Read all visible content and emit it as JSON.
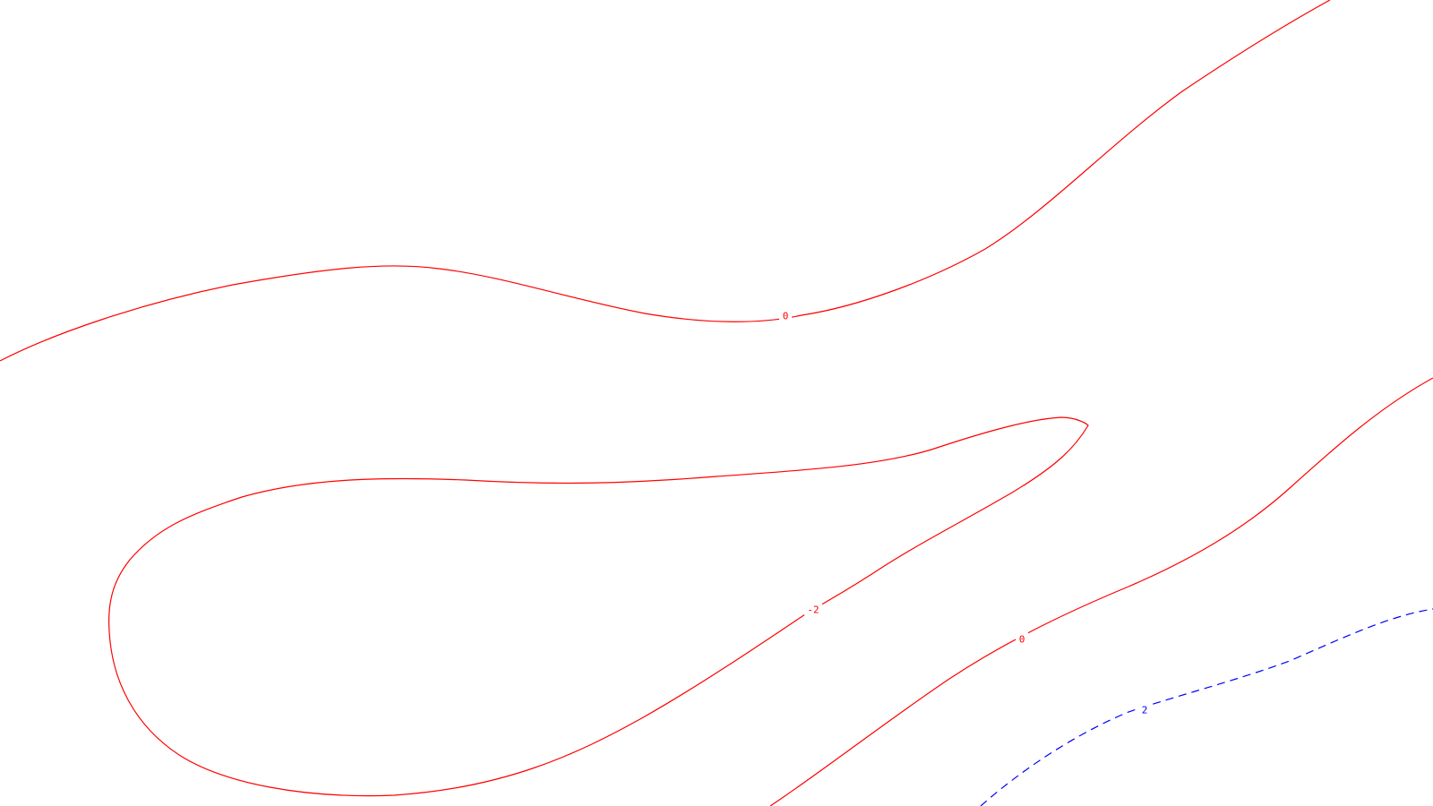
{
  "map": {
    "background_color": "#ffffff",
    "contours": [
      {
        "id": "contour-upper-zero",
        "level_label": "0",
        "color": "#ff0000",
        "style": "solid"
      },
      {
        "id": "contour-closed-minus-two",
        "level_label": "-2",
        "color": "#ff0000",
        "style": "solid"
      },
      {
        "id": "contour-lower-zero",
        "level_label": "0",
        "color": "#ff0000",
        "style": "solid"
      },
      {
        "id": "contour-dashed-two",
        "level_label": "2",
        "color": "#0000ff",
        "style": "dashed"
      }
    ]
  }
}
